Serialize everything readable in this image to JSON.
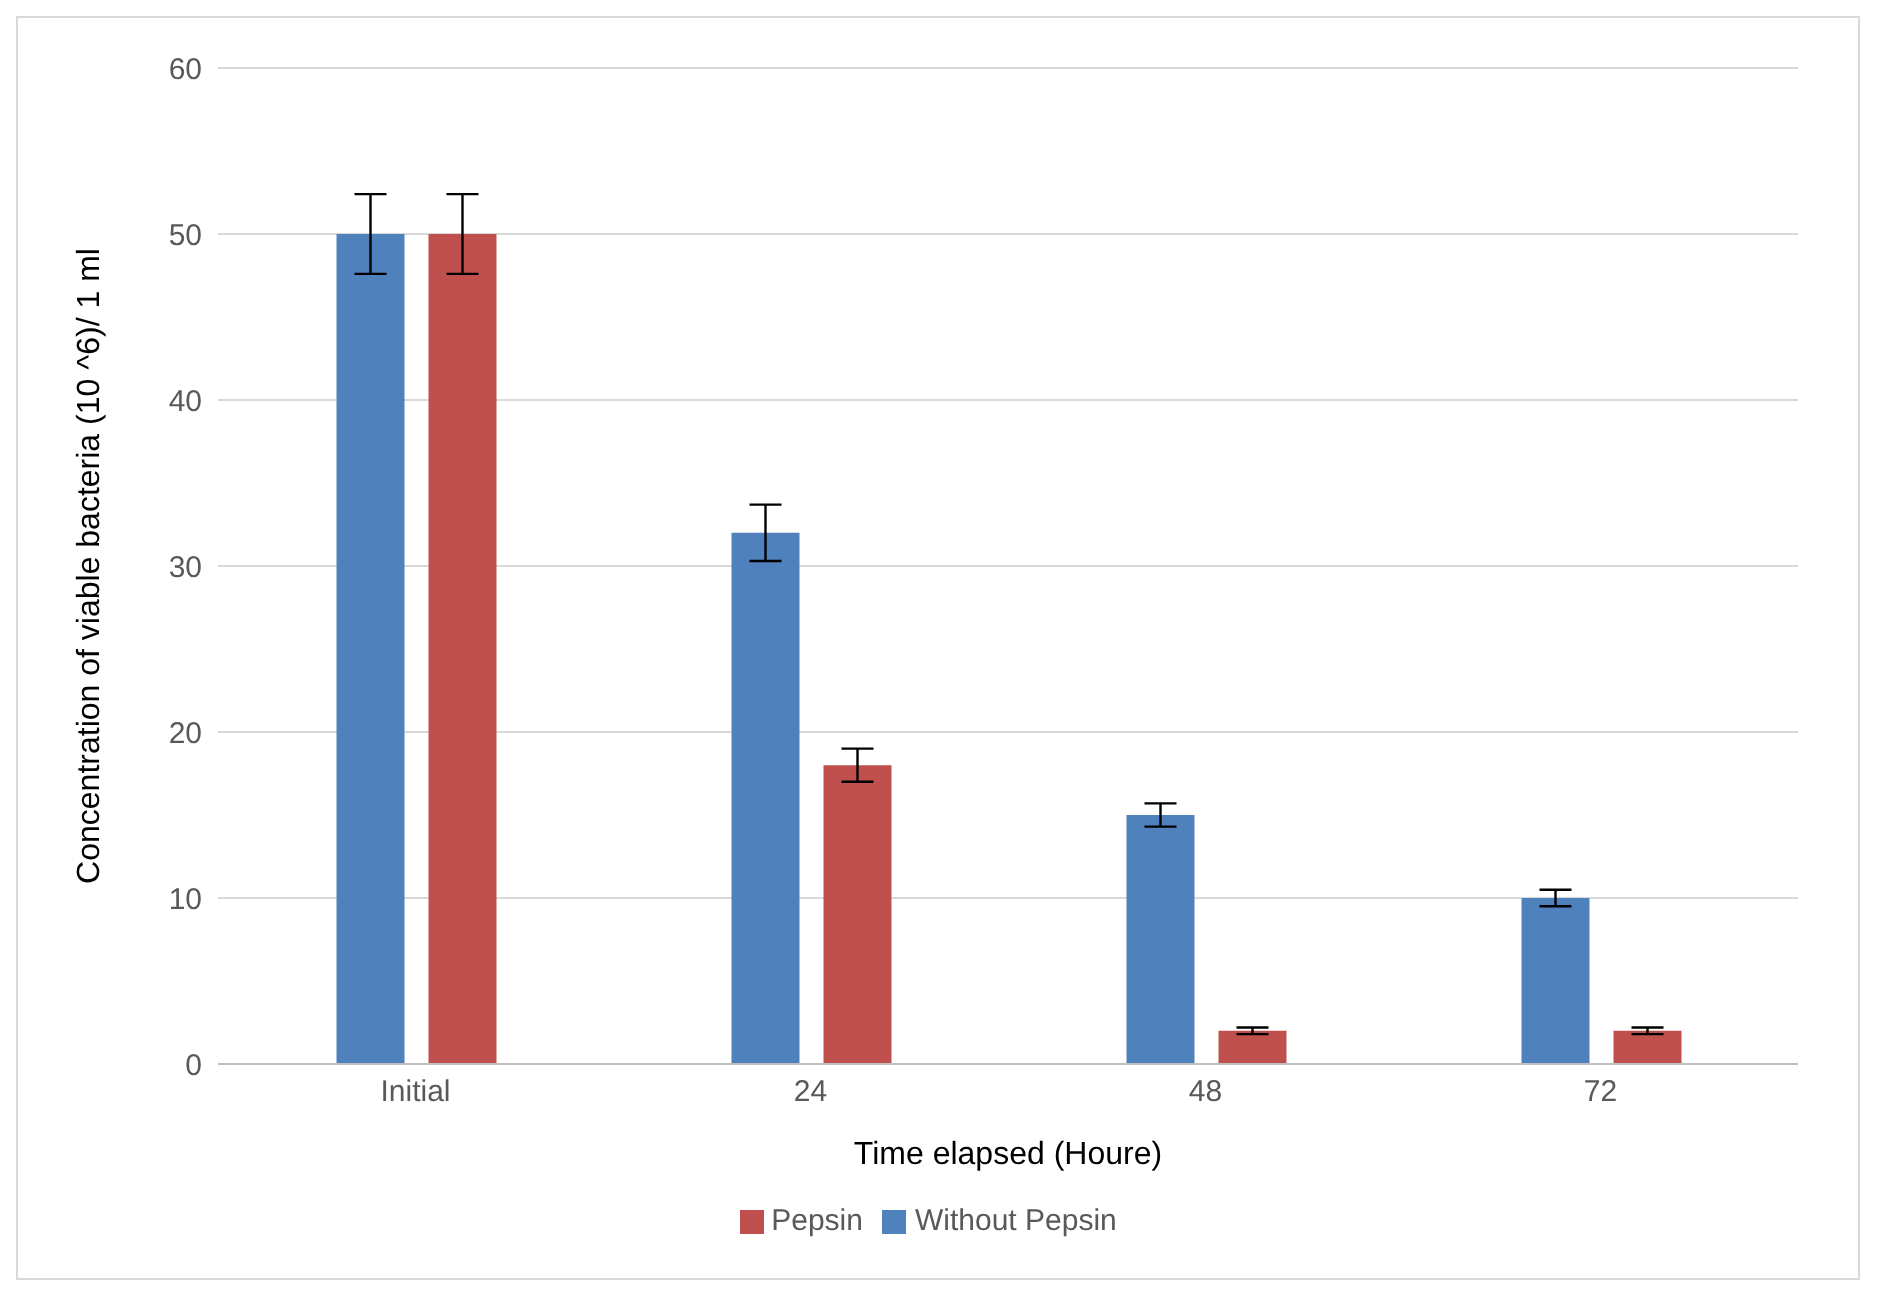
{
  "chart_data": {
    "type": "bar",
    "xlabel": "Time elapsed (Houre)",
    "ylabel": "Concentration of viable bacteria (10 ^6)/ 1 ml",
    "categories": [
      "Initial",
      "24",
      "48",
      "72"
    ],
    "series": [
      {
        "name": "Without Pepsin",
        "color": "#4f81bd",
        "values": [
          50,
          32,
          15,
          10
        ],
        "errors": [
          2.4,
          1.7,
          0.7,
          0.5
        ]
      },
      {
        "name": "Pepsin",
        "color": "#c0504d",
        "values": [
          50,
          18,
          2,
          2
        ],
        "errors": [
          2.4,
          1,
          0.2,
          0.2
        ]
      }
    ],
    "ylim": [
      0,
      60
    ],
    "yticks": [
      0,
      10,
      20,
      30,
      40,
      50,
      60
    ],
    "grid": "y",
    "legend": "bottom"
  }
}
